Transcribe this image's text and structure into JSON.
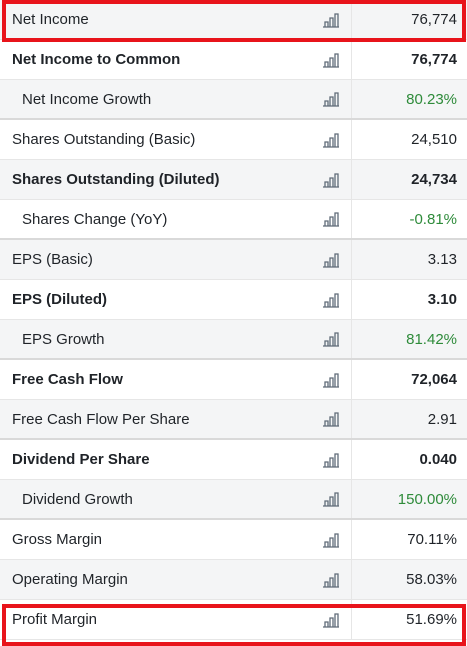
{
  "colors": {
    "highlight": "#e8141b",
    "positive": "#2e8b3a",
    "text": "#1f2328"
  },
  "rows": [
    {
      "label": "Net Income",
      "value": "76,774",
      "bold": false,
      "indent": false,
      "green": false,
      "icon": "bar-chart-icon"
    },
    {
      "label": "Net Income to Common",
      "value": "76,774",
      "bold": true,
      "indent": false,
      "green": false,
      "icon": "bar-chart-icon"
    },
    {
      "label": "Net Income Growth",
      "value": "80.23%",
      "bold": false,
      "indent": true,
      "green": true,
      "icon": "bar-chart-icon"
    },
    {
      "label": "Shares Outstanding (Basic)",
      "value": "24,510",
      "bold": false,
      "indent": false,
      "green": false,
      "icon": "bar-chart-icon"
    },
    {
      "label": "Shares Outstanding (Diluted)",
      "value": "24,734",
      "bold": true,
      "indent": false,
      "green": false,
      "icon": "bar-chart-icon"
    },
    {
      "label": "Shares Change (YoY)",
      "value": "-0.81%",
      "bold": false,
      "indent": true,
      "green": true,
      "icon": "bar-chart-icon"
    },
    {
      "label": "EPS (Basic)",
      "value": "3.13",
      "bold": false,
      "indent": false,
      "green": false,
      "icon": "bar-chart-icon"
    },
    {
      "label": "EPS (Diluted)",
      "value": "3.10",
      "bold": true,
      "indent": false,
      "green": false,
      "icon": "bar-chart-icon"
    },
    {
      "label": "EPS Growth",
      "value": "81.42%",
      "bold": false,
      "indent": true,
      "green": true,
      "icon": "bar-chart-icon"
    },
    {
      "label": "Free Cash Flow",
      "value": "72,064",
      "bold": true,
      "indent": false,
      "green": false,
      "icon": "bar-chart-icon"
    },
    {
      "label": "Free Cash Flow Per Share",
      "value": "2.91",
      "bold": false,
      "indent": false,
      "green": false,
      "icon": "bar-chart-icon"
    },
    {
      "label": "Dividend Per Share",
      "value": "0.040",
      "bold": true,
      "indent": false,
      "green": false,
      "icon": "bar-chart-icon"
    },
    {
      "label": "Dividend Growth",
      "value": "150.00%",
      "bold": false,
      "indent": true,
      "green": true,
      "icon": "bar-chart-icon"
    },
    {
      "label": "Gross Margin",
      "value": "70.11%",
      "bold": false,
      "indent": false,
      "green": false,
      "icon": "bar-chart-icon"
    },
    {
      "label": "Operating Margin",
      "value": "58.03%",
      "bold": false,
      "indent": false,
      "green": false,
      "icon": "bar-chart-icon"
    },
    {
      "label": "Profit Margin",
      "value": "51.69%",
      "bold": false,
      "indent": false,
      "green": false,
      "icon": "bar-chart-icon"
    }
  ]
}
